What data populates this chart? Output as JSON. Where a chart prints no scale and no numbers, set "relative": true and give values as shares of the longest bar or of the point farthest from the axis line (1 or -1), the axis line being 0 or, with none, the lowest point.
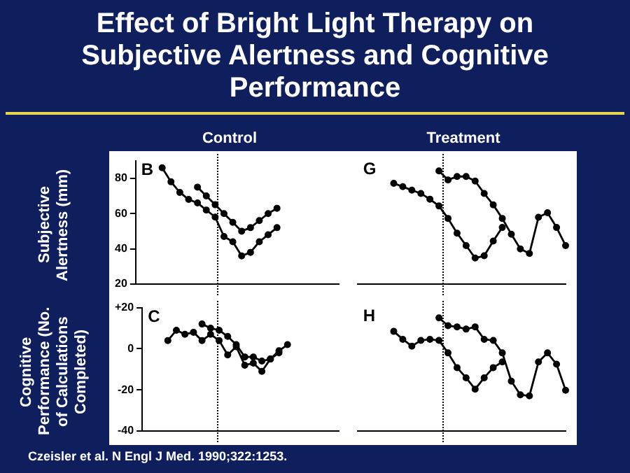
{
  "chart_data": [
    {
      "type": "line",
      "title": "Effect of Bright Light Therapy on Subjective Alertness and Cognitive Performance",
      "subtitle": "Control",
      "ylabel": "Subjective Alertness (mm)",
      "categories": [
        null,
        null,
        null,
        null,
        null,
        null,
        null,
        null,
        null,
        null,
        null,
        null,
        null,
        null,
        null,
        null,
        null,
        null,
        null,
        null,
        null,
        null,
        null,
        null
      ],
      "ylim": [
        20,
        90
      ],
      "yticks": [
        20,
        40,
        60,
        80
      ],
      "tick_labels": "y",
      "grid": false,
      "legend": false,
      "marker": "circle",
      "annotations": [
        "B"
      ],
      "series": [
        {
          "color": "#000000",
          "values": [
            null,
            null,
            null,
            86,
            78,
            72,
            68,
            66,
            62,
            58,
            47,
            44,
            36,
            38,
            44,
            48,
            52,
            null,
            null,
            null,
            null,
            null,
            null,
            null
          ]
        },
        {
          "color": "#000000",
          "values": [
            null,
            null,
            null,
            null,
            null,
            null,
            null,
            75,
            70,
            65,
            60,
            55,
            50,
            52,
            56,
            60,
            63,
            null,
            null,
            null,
            null,
            null,
            null,
            null
          ]
        }
      ]
    },
    {
      "type": "line",
      "subtitle": "Treatment",
      "categories": [
        null,
        null,
        null,
        null,
        null,
        null,
        null,
        null,
        null,
        null,
        null,
        null,
        null,
        null,
        null,
        null,
        null,
        null,
        null,
        null,
        null,
        null,
        null,
        null
      ],
      "relative": true,
      "tick_labels": false,
      "grid": false,
      "legend": false,
      "marker": "circle",
      "annotations": [
        "G"
      ],
      "series": [
        {
          "color": "#000000",
          "values": [
            null,
            null,
            null,
            null,
            0.89,
            0.86,
            0.83,
            0.8,
            0.75,
            0.69,
            0.58,
            0.45,
            0.34,
            0.23,
            0.25,
            0.38,
            0.5,
            null,
            null,
            null,
            null,
            null,
            null,
            null
          ]
        },
        {
          "color": "#000000",
          "values": [
            null,
            null,
            null,
            null,
            null,
            null,
            null,
            null,
            null,
            1,
            0.92,
            0.95,
            0.95,
            0.91,
            0.8,
            0.7,
            0.58,
            0.44,
            0.31,
            0.27,
            0.59,
            0.63,
            0.5,
            0.34
          ]
        }
      ]
    },
    {
      "type": "line",
      "ylabel": "Cognitive Performance (No. of Calculations Completed)",
      "categories": [
        null,
        null,
        null,
        null,
        null,
        null,
        null,
        null,
        null,
        null,
        null,
        null,
        null,
        null,
        null,
        null,
        null,
        null,
        null,
        null,
        null,
        null,
        null,
        null
      ],
      "ylim": [
        -40,
        20
      ],
      "yticks": [
        {
          "value": 20,
          "label": "+20"
        },
        0,
        -20,
        -40
      ],
      "tick_labels": "y",
      "grid": false,
      "legend": false,
      "marker": "circle",
      "annotations": [
        "C",
        "Czeisler et al. N Engl J Med. 1990;322:1253."
      ],
      "series": [
        {
          "color": "#000000",
          "values": [
            null,
            null,
            null,
            4,
            9,
            7,
            8,
            4,
            7,
            4,
            -3,
            1,
            -8,
            -7,
            -11,
            -5,
            -2,
            null,
            null,
            null,
            null,
            null,
            null,
            null
          ]
        },
        {
          "color": "#000000",
          "values": [
            null,
            null,
            null,
            null,
            null,
            null,
            null,
            12,
            10,
            9,
            6,
            2,
            -4,
            -4,
            -6,
            -5,
            -1,
            2,
            null,
            null,
            null,
            null,
            null,
            null
          ]
        }
      ]
    },
    {
      "type": "line",
      "categories": [
        null,
        null,
        null,
        null,
        null,
        null,
        null,
        null,
        null,
        null,
        null,
        null,
        null,
        null,
        null,
        null,
        null,
        null,
        null,
        null,
        null,
        null,
        null,
        null
      ],
      "relative": true,
      "tick_labels": false,
      "grid": false,
      "legend": false,
      "marker": "circle",
      "annotations": [
        "H"
      ],
      "series": [
        {
          "color": "#000000",
          "values": [
            null,
            null,
            null,
            null,
            0.88,
            0.81,
            0.75,
            0.8,
            0.81,
            0.8,
            0.69,
            0.56,
            0.47,
            0.37,
            0.47,
            0.56,
            0.61,
            null,
            null,
            null,
            null,
            null,
            null,
            null
          ]
        },
        {
          "color": "#000000",
          "values": [
            null,
            null,
            null,
            null,
            null,
            null,
            null,
            null,
            null,
            1,
            0.93,
            0.92,
            0.9,
            0.92,
            0.81,
            0.8,
            0.69,
            0.44,
            0.32,
            0.31,
            0.61,
            0.69,
            0.59,
            0.36
          ]
        }
      ]
    }
  ]
}
